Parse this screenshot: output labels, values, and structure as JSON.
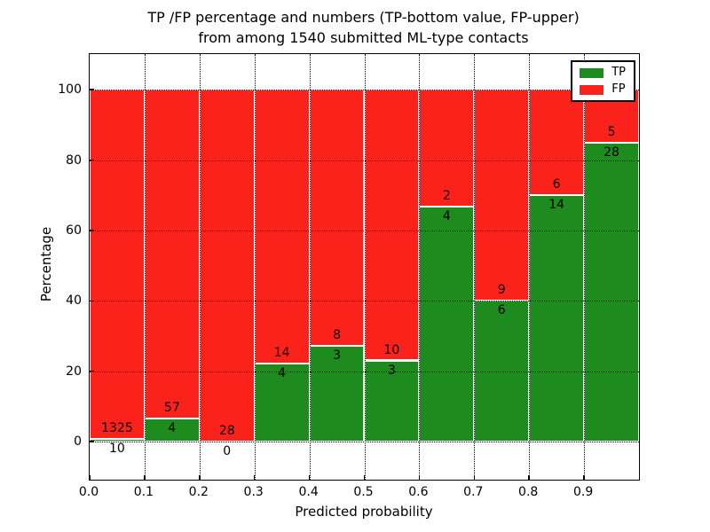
{
  "title": {
    "line1": "TP /FP percentage and numbers (TP-bottom value, FP-upper)",
    "line2": "from among 1540 submitted ML-type contacts"
  },
  "legend": {
    "items": [
      {
        "label": "TP",
        "color": "#1e8b1e"
      },
      {
        "label": "FP",
        "color": "#fb221b"
      }
    ]
  },
  "colors": {
    "tp": "#1e8b1e",
    "fp": "#fb221b",
    "bar_edge": "#ffffff",
    "grid": "#000000",
    "background": "#ffffff"
  },
  "chart_data": {
    "type": "bar",
    "stacked": true,
    "normalized_to_percent": true,
    "title": "TP /FP percentage and numbers (TP-bottom value, FP-upper)\nfrom among 1540 submitted ML-type contacts",
    "xlabel": "Predicted probability",
    "ylabel": "Percentage",
    "total_contacts": 1540,
    "xlim": [
      0.0,
      1.0
    ],
    "ylim": [
      -10.8,
      110.1
    ],
    "yticks": [
      0,
      20,
      40,
      60,
      80,
      100
    ],
    "xticks": [
      "0.0",
      "0.1",
      "0.2",
      "0.3",
      "0.4",
      "0.5",
      "0.6",
      "0.7",
      "0.8",
      "0.9"
    ],
    "grid": true,
    "legend_position": "upper right",
    "categories": [
      "0.0-0.1",
      "0.1-0.2",
      "0.2-0.3",
      "0.3-0.4",
      "0.4-0.5",
      "0.5-0.6",
      "0.6-0.7",
      "0.7-0.8",
      "0.8-0.9",
      "0.9-1.0"
    ],
    "series": [
      {
        "name": "TP",
        "counts": [
          10,
          4,
          0,
          4,
          3,
          3,
          4,
          6,
          14,
          28
        ]
      },
      {
        "name": "FP",
        "counts": [
          1325,
          57,
          28,
          14,
          8,
          10,
          2,
          9,
          6,
          5
        ]
      }
    ],
    "bins": [
      {
        "x_start": 0.0,
        "x_end": 0.1,
        "tp": 10,
        "fp": 1325,
        "tp_percent": 0.7
      },
      {
        "x_start": 0.1,
        "x_end": 0.2,
        "tp": 4,
        "fp": 57,
        "tp_percent": 6.6
      },
      {
        "x_start": 0.2,
        "x_end": 0.3,
        "tp": 0,
        "fp": 28,
        "tp_percent": 0.0
      },
      {
        "x_start": 0.3,
        "x_end": 0.4,
        "tp": 4,
        "fp": 14,
        "tp_percent": 22.2
      },
      {
        "x_start": 0.4,
        "x_end": 0.5,
        "tp": 3,
        "fp": 8,
        "tp_percent": 27.3
      },
      {
        "x_start": 0.5,
        "x_end": 0.6,
        "tp": 3,
        "fp": 10,
        "tp_percent": 23.1
      },
      {
        "x_start": 0.6,
        "x_end": 0.7,
        "tp": 4,
        "fp": 2,
        "tp_percent": 66.7
      },
      {
        "x_start": 0.7,
        "x_end": 0.8,
        "tp": 6,
        "fp": 9,
        "tp_percent": 40.0
      },
      {
        "x_start": 0.8,
        "x_end": 0.9,
        "tp": 14,
        "fp": 6,
        "tp_percent": 70.0
      },
      {
        "x_start": 0.9,
        "x_end": 1.0,
        "tp": 28,
        "fp": 5,
        "tp_percent": 84.8
      }
    ]
  }
}
